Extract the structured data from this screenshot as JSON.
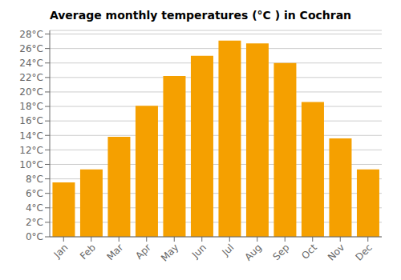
{
  "chart_data": {
    "type": "bar",
    "title": "Average monthly temperatures (°C ) in Cochran",
    "categories": [
      "Jan",
      "Feb",
      "Mar",
      "Apr",
      "May",
      "Jun",
      "Jul",
      "Aug",
      "Sep",
      "Oct",
      "Nov",
      "Dec"
    ],
    "values": [
      7.5,
      9.3,
      13.8,
      18.1,
      22.2,
      25.0,
      27.1,
      26.7,
      24.0,
      18.6,
      13.6,
      9.3
    ],
    "color": "#F5A000",
    "ylim": [
      0,
      28.5
    ],
    "yticks": [
      {
        "value": 0,
        "label": "0°C"
      },
      {
        "value": 2,
        "label": "2°C"
      },
      {
        "value": 4,
        "label": "4°C"
      },
      {
        "value": 6,
        "label": "6°C"
      },
      {
        "value": 8,
        "label": "8°C"
      },
      {
        "value": 10,
        "label": "10°C"
      },
      {
        "value": 12,
        "label": "12°C"
      },
      {
        "value": 14,
        "label": "14°C"
      },
      {
        "value": 16,
        "label": "16°C"
      },
      {
        "value": 18,
        "label": "18°C"
      },
      {
        "value": 20,
        "label": "20°C"
      },
      {
        "value": 22,
        "label": "22°C"
      },
      {
        "value": 24,
        "label": "24°C"
      },
      {
        "value": 26,
        "label": "26°C"
      },
      {
        "value": 28,
        "label": "28°C"
      }
    ],
    "grid": true
  }
}
